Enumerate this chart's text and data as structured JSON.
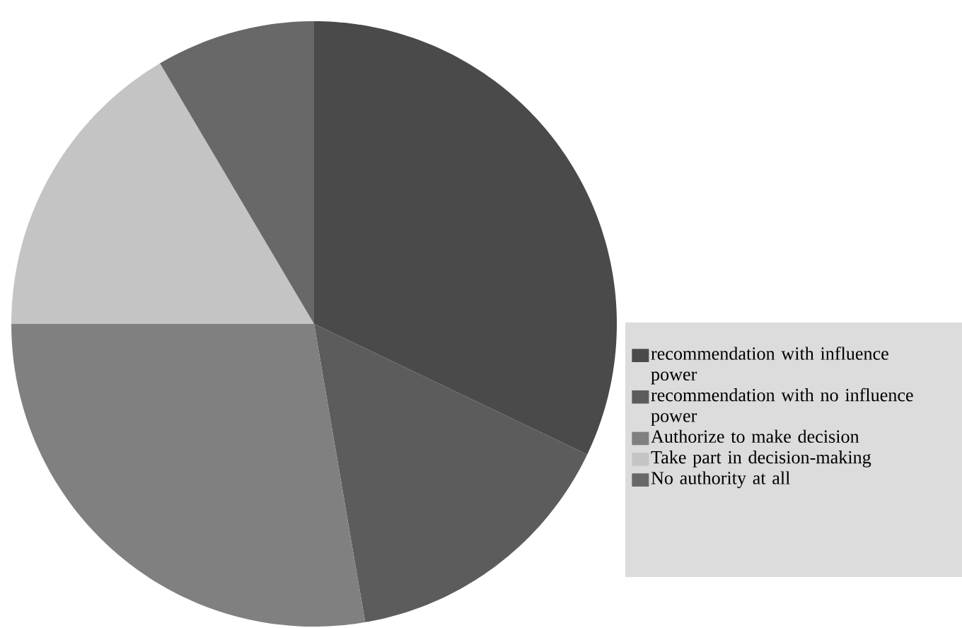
{
  "chart_data": {
    "type": "pie",
    "categories": [
      "recommendation with influence power",
      "recommendation with no influence power",
      "Authorize to make decision",
      "Take part in decision-making",
      "No authority at all"
    ],
    "values": [
      32.1,
      15.2,
      27.7,
      16.5,
      8.5
    ],
    "colors": [
      "#4a4a4a",
      "#5c5c5c",
      "#808080",
      "#c4c4c4",
      "#686868"
    ],
    "legend": "right"
  }
}
